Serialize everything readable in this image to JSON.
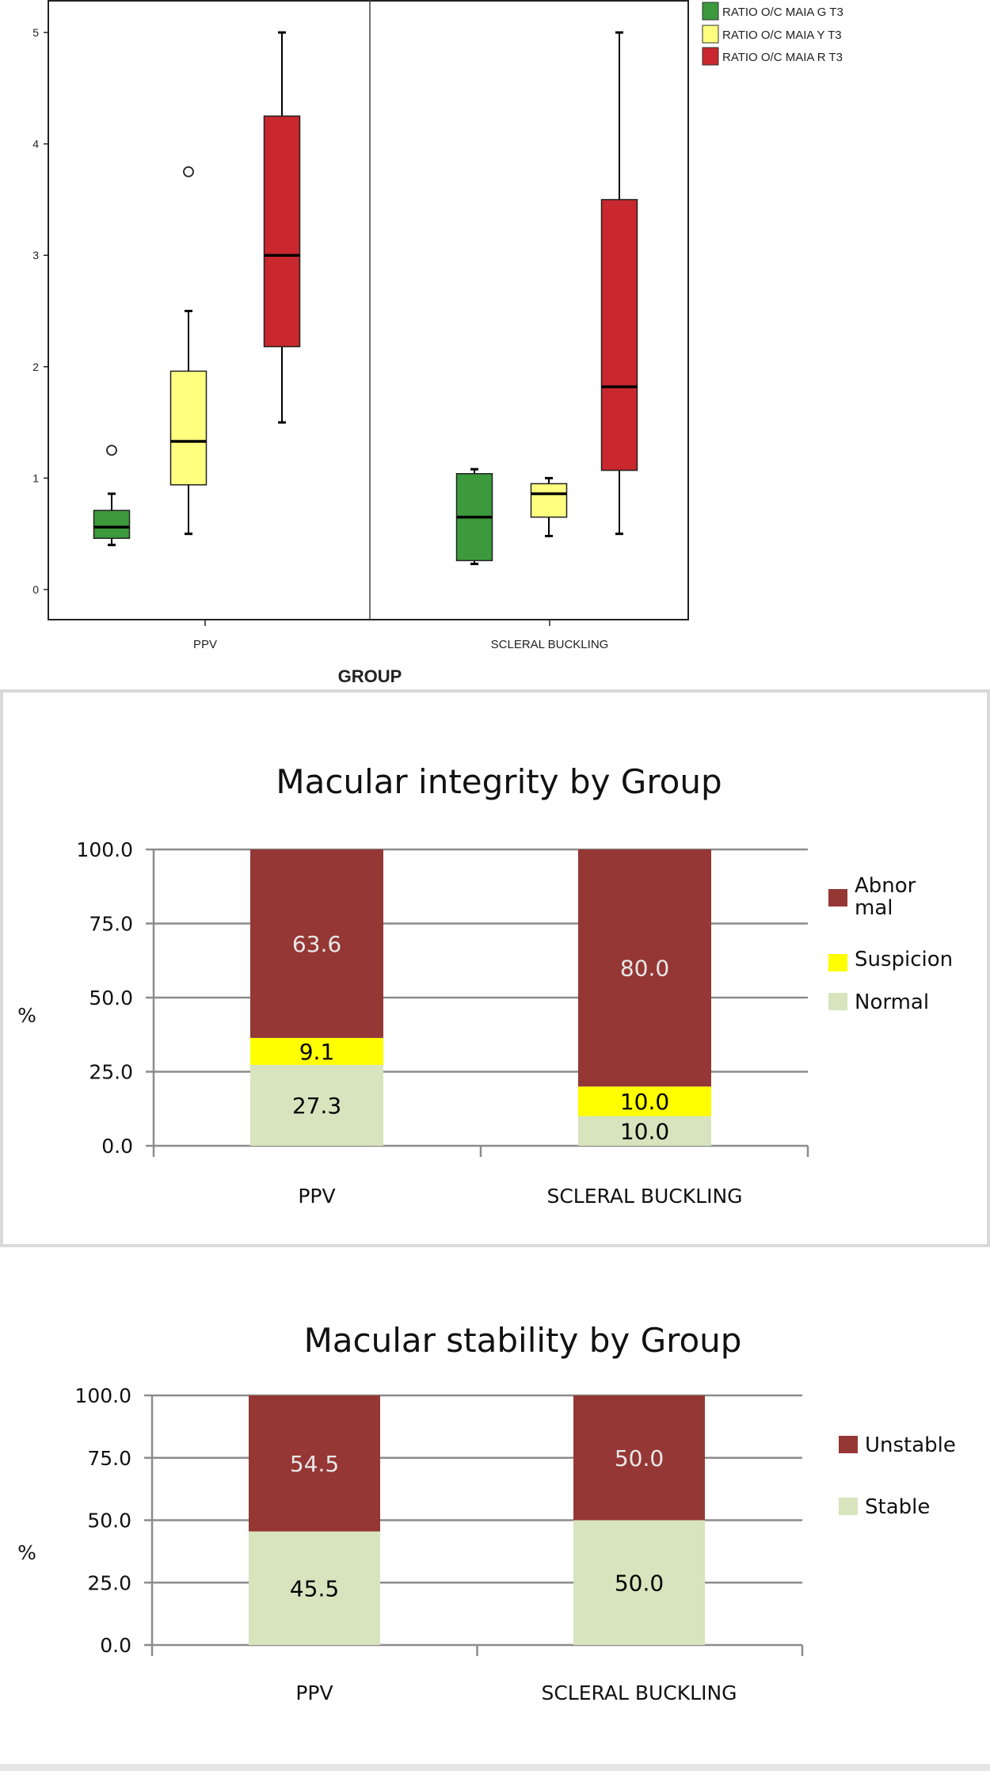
{
  "chart_data": [
    {
      "type": "boxplot",
      "xlabel": "GROUP",
      "ylabel": "",
      "ylim": [
        -0.25,
        5.3
      ],
      "yticks": [
        "0",
        "1",
        "2",
        "3",
        "4",
        "5"
      ],
      "categories": [
        "PPV",
        "SCLERAL BUCKLING"
      ],
      "legend_position": "top-right",
      "series": [
        {
          "name": "RATIO O/C MAIA G T3",
          "color": "#3c9a3c",
          "boxes": [
            {
              "min": 0.4,
              "q1": 0.46,
              "median": 0.56,
              "q3": 0.71,
              "max": 0.86,
              "outliers": [
                1.25
              ]
            },
            {
              "min": 0.23,
              "q1": 0.26,
              "median": 0.65,
              "q3": 1.04,
              "max": 1.08,
              "outliers": []
            }
          ]
        },
        {
          "name": "RATIO O/C MAIA Y T3",
          "color": "#ffff80",
          "boxes": [
            {
              "min": 0.5,
              "q1": 0.94,
              "median": 1.33,
              "q3": 1.96,
              "max": 2.5,
              "outliers": [
                3.75
              ]
            },
            {
              "min": 0.48,
              "q1": 0.65,
              "median": 0.86,
              "q3": 0.95,
              "max": 1.0,
              "outliers": []
            }
          ]
        },
        {
          "name": "RATIO O/C MAIA R T3",
          "color": "#c8282e",
          "boxes": [
            {
              "min": 1.5,
              "q1": 2.18,
              "median": 3.0,
              "q3": 4.25,
              "max": 5.0,
              "outliers": []
            },
            {
              "min": 0.5,
              "q1": 1.07,
              "median": 1.82,
              "q3": 3.5,
              "max": 5.0,
              "outliers": []
            }
          ]
        }
      ]
    },
    {
      "type": "bar",
      "stacked": true,
      "title": "Macular integrity by Group",
      "ylabel": "%",
      "ylim": [
        0,
        100
      ],
      "yticks": [
        "0.0",
        "25.0",
        "50.0",
        "75.0",
        "100.0"
      ],
      "grid": true,
      "legend_position": "right",
      "categories": [
        "PPV",
        "SCLERAL BUCKLING"
      ],
      "series": [
        {
          "name": "Normal",
          "color": "#d7e4bd",
          "label_color": "#000000",
          "values": [
            27.3,
            10.0
          ],
          "labels": [
            "27.3",
            "10.0"
          ]
        },
        {
          "name": "Suspicion",
          "color": "#ffff00",
          "label_color": "#000000",
          "values": [
            9.1,
            10.0
          ],
          "labels": [
            "9.1",
            "10.0"
          ]
        },
        {
          "name": "Abnor mal",
          "legend_lines": [
            "Abnor",
            "mal"
          ],
          "color": "#953735",
          "label_color": "#e8e8e8",
          "values": [
            63.6,
            80.0
          ],
          "labels": [
            "63.6",
            "80.0"
          ]
        }
      ]
    },
    {
      "type": "bar",
      "stacked": true,
      "title": "Macular stability by Group",
      "ylabel": "%",
      "ylim": [
        0,
        100
      ],
      "yticks": [
        "0.0",
        "25.0",
        "50.0",
        "75.0",
        "100.0"
      ],
      "grid": true,
      "legend_position": "right",
      "categories": [
        "PPV",
        "SCLERAL BUCKLING"
      ],
      "series": [
        {
          "name": "Stable",
          "color": "#d7e4bd",
          "label_color": "#000000",
          "values": [
            45.5,
            50.0
          ],
          "labels": [
            "45.5",
            "50.0"
          ]
        },
        {
          "name": "Unstable",
          "color": "#953735",
          "label_color": "#e8e8e8",
          "values": [
            54.5,
            50.0
          ],
          "labels": [
            "54.5",
            "50.0"
          ]
        }
      ]
    }
  ]
}
